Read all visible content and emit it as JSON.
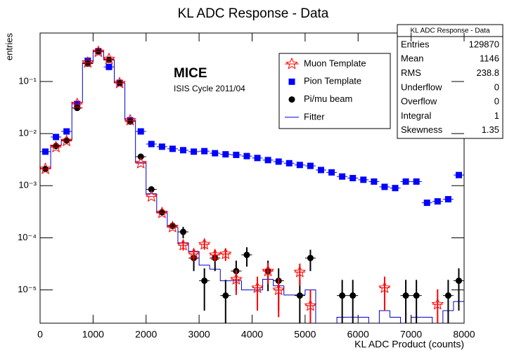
{
  "chart_data": {
    "type": "histogram",
    "title": "KL ADC Response - Data",
    "x_label": "KL ADC Product (counts)",
    "y_label": "entries",
    "annotations": [
      "MICE",
      "ISIS Cycle 2011/04"
    ],
    "ylog": true,
    "grid": false,
    "bins": [
      0,
      200,
      400,
      600,
      800,
      1000,
      1200,
      1400,
      1600,
      1800,
      2000,
      2200,
      2400,
      2600,
      2800,
      3000,
      3200,
      3400,
      3600,
      3800,
      4000,
      4200,
      4400,
      4600,
      4800,
      5000,
      5200,
      5400,
      5600,
      5800,
      6000,
      6200,
      6400,
      6600,
      6800,
      7000,
      7200,
      7400,
      7600,
      7800,
      8000
    ],
    "xlim": [
      0,
      8000
    ],
    "xticks": [
      0,
      1000,
      2000,
      3000,
      4000,
      5000,
      6000,
      7000,
      8000
    ],
    "ylim": [
      2.3e-06,
      0.85
    ],
    "yticks": [
      {
        "value": 1e-05,
        "label": "10⁻⁵"
      },
      {
        "value": 0.0001,
        "label": "10⁻⁴"
      },
      {
        "value": 0.001,
        "label": "10⁻³"
      },
      {
        "value": 0.01,
        "label": "10⁻²"
      },
      {
        "value": 0.1,
        "label": "10⁻¹"
      }
    ],
    "series": [
      {
        "name": "Muon Template",
        "color": "#ff0000",
        "marker": "star",
        "values": [
          0.0021,
          0.0055,
          0.0072,
          0.037,
          0.23,
          0.37,
          0.27,
          0.093,
          0.018,
          0.0027,
          0.00062,
          0.0003,
          0.00016,
          7.2e-05,
          4.9e-05,
          7.5e-05,
          4.7e-05,
          4.9e-05,
          1.6e-05,
          null,
          1.1e-05,
          2.3e-05,
          1e-05,
          null,
          2.2e-05,
          5e-06,
          null,
          null,
          null,
          null,
          null,
          null,
          1.1e-05,
          null,
          null,
          null,
          null,
          5.3e-06,
          null,
          null
        ],
        "errors": [
          null,
          null,
          null,
          null,
          null,
          null,
          null,
          null,
          null,
          null,
          null,
          null,
          null,
          1.5e-05,
          1.3e-05,
          1.6e-05,
          1.2e-05,
          1.3e-05,
          8e-06,
          null,
          7e-06,
          1e-05,
          7e-06,
          null,
          1e-05,
          5e-06,
          null,
          null,
          null,
          null,
          null,
          null,
          7e-06,
          null,
          null,
          null,
          null,
          5e-06,
          null,
          null
        ]
      },
      {
        "name": "Pion Template",
        "color": "#0000ff",
        "marker": "square",
        "values": [
          0.0045,
          0.0086,
          0.011,
          0.037,
          0.25,
          0.38,
          0.19,
          0.094,
          0.018,
          0.011,
          0.0063,
          0.0056,
          0.0051,
          0.0048,
          0.0045,
          0.0046,
          0.0042,
          0.004,
          0.0039,
          0.0037,
          0.0034,
          0.0031,
          0.0029,
          0.0027,
          0.0025,
          0.0024,
          0.002,
          0.0018,
          0.0015,
          0.0014,
          0.0013,
          0.0012,
          0.00095,
          0.0009,
          0.0012,
          0.0012,
          0.00047,
          0.0005,
          0.00055,
          0.0016
        ]
      },
      {
        "name": "Pi/mu beam",
        "color": "#000000",
        "marker": "circle",
        "values": [
          0.0021,
          0.0058,
          0.0074,
          0.031,
          0.22,
          0.38,
          0.26,
          0.094,
          0.017,
          0.0036,
          0.00085,
          0.00031,
          0.00017,
          0.00013,
          4.1e-05,
          1.5e-05,
          4.1e-05,
          7.8e-06,
          2.3e-05,
          4.7e-05,
          null,
          2.3e-05,
          1.5e-05,
          null,
          7.8e-06,
          4.1e-05,
          null,
          null,
          7.8e-06,
          7.8e-06,
          null,
          null,
          null,
          null,
          7.8e-06,
          7.8e-06,
          null,
          null,
          7.8e-06,
          1.5e-05
        ],
        "errors": [
          null,
          null,
          null,
          null,
          null,
          null,
          null,
          null,
          null,
          null,
          null,
          null,
          null,
          3.2e-05,
          1.8e-05,
          1.1e-05,
          1.8e-05,
          7.8e-06,
          1.35e-05,
          1.9e-05,
          null,
          1.35e-05,
          1.1e-05,
          null,
          7.8e-06,
          1.8e-05,
          null,
          null,
          7.8e-06,
          7.8e-06,
          null,
          null,
          null,
          null,
          7.8e-06,
          7.8e-06,
          null,
          null,
          7.8e-06,
          1.1e-05
        ]
      },
      {
        "name": "Fitter",
        "color": "#0000cc",
        "marker": "step",
        "values": [
          0.0021,
          0.006,
          0.0075,
          0.04,
          0.23,
          0.38,
          0.26,
          0.094,
          0.018,
          0.0028,
          0.0007,
          0.0003,
          0.00016,
          8e-05,
          5.5e-05,
          3e-05,
          2.5e-05,
          1.5e-05,
          1.5e-05,
          1e-05,
          1e-05,
          1.6e-05,
          1.2e-05,
          8e-06,
          8e-06,
          1e-05,
          null,
          null,
          3e-06,
          3e-06,
          3e-06,
          null,
          4e-06,
          3e-06,
          null,
          3e-06,
          3e-06,
          null,
          4e-06,
          6e-06
        ]
      }
    ],
    "stats_box": {
      "title": "KL ADC Response - Data",
      "rows": [
        [
          "Entries",
          129870
        ],
        [
          "Mean",
          1146
        ],
        [
          "RMS",
          238.8
        ],
        [
          "Underflow",
          0
        ],
        [
          "Overflow",
          0
        ],
        [
          "Integral",
          1
        ],
        [
          "Skewness",
          1.35
        ]
      ]
    }
  }
}
